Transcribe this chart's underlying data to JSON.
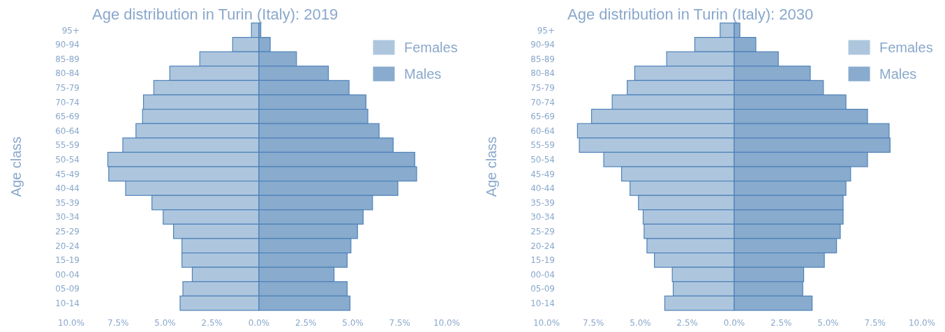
{
  "chart_data": [
    {
      "type": "bar",
      "orientation": "horizontal",
      "stacked": true,
      "title": "Age distribution in Turin (Italy): 2019",
      "ylabel": "Age class",
      "legend": "top right",
      "categories": [
        "95+",
        "90-94",
        "85-89",
        "80-84",
        "75-79",
        "70-74",
        "65-69",
        "60-64",
        "55-59",
        "50-54",
        "45-49",
        "40-44",
        "35-39",
        "30-34",
        "25-29",
        "20-24",
        "15-19",
        "00-04",
        "05-09",
        "10-14"
      ],
      "series": [
        {
          "name": "Females",
          "color": "#adc6de",
          "values": [
            -0.4,
            -1.4,
            -3.15,
            -4.75,
            -5.6,
            -6.15,
            -6.2,
            -6.55,
            -7.25,
            -8.05,
            -8.0,
            -7.1,
            -5.7,
            -5.1,
            -4.55,
            -4.1,
            -4.1,
            -3.55,
            -4.05,
            -4.2
          ]
        },
        {
          "name": "Males",
          "color": "#88abce",
          "values": [
            0.1,
            0.6,
            2.0,
            3.7,
            4.8,
            5.7,
            5.8,
            6.4,
            7.15,
            8.3,
            8.4,
            7.4,
            6.05,
            5.55,
            5.25,
            4.9,
            4.7,
            4.0,
            4.7,
            4.85
          ]
        }
      ],
      "xlim": [
        -10,
        10
      ],
      "xticks": [
        {
          "value": -10,
          "label": "10.0%"
        },
        {
          "value": -7.5,
          "label": "7.5%"
        },
        {
          "value": -5,
          "label": "5.0%"
        },
        {
          "value": -2.5,
          "label": "2.5%"
        },
        {
          "value": 0,
          "label": "0.0%"
        },
        {
          "value": 2.5,
          "label": "2.5%"
        },
        {
          "value": 5,
          "label": "5.0%"
        },
        {
          "value": 7.5,
          "label": "7.5%"
        },
        {
          "value": 10,
          "label": "10.0%"
        }
      ]
    },
    {
      "type": "bar",
      "orientation": "horizontal",
      "stacked": true,
      "title": "Age distribution in Turin (Italy): 2030",
      "ylabel": "Age class",
      "legend": "top right",
      "categories": [
        "95+",
        "90-94",
        "85-89",
        "80-84",
        "75-79",
        "70-74",
        "65-69",
        "60-64",
        "55-59",
        "50-54",
        "45-49",
        "40-44",
        "35-39",
        "30-34",
        "25-29",
        "20-24",
        "15-19",
        "00-04",
        "05-09",
        "10-14"
      ],
      "series": [
        {
          "name": "Females",
          "color": "#adc6de",
          "values": [
            -0.75,
            -2.1,
            -3.6,
            -5.3,
            -5.7,
            -6.5,
            -7.6,
            -8.35,
            -8.25,
            -6.95,
            -6.0,
            -5.55,
            -5.1,
            -4.85,
            -4.8,
            -4.65,
            -4.25,
            -3.3,
            -3.25,
            -3.7
          ]
        },
        {
          "name": "Males",
          "color": "#88abce",
          "values": [
            0.3,
            1.15,
            2.35,
            4.05,
            4.75,
            5.95,
            7.1,
            8.25,
            8.3,
            7.1,
            6.2,
            5.95,
            5.8,
            5.8,
            5.65,
            5.45,
            4.8,
            3.7,
            3.65,
            4.15
          ]
        }
      ],
      "xlim": [
        -10,
        10
      ],
      "xticks": [
        {
          "value": -10,
          "label": "10.0%"
        },
        {
          "value": -7.5,
          "label": "7.5%"
        },
        {
          "value": -5,
          "label": "5.0%"
        },
        {
          "value": -2.5,
          "label": "2.5%"
        },
        {
          "value": 0,
          "label": "0.0%"
        },
        {
          "value": 2.5,
          "label": "2.5%"
        },
        {
          "value": 5,
          "label": "5.0%"
        },
        {
          "value": 7.5,
          "label": "7.5%"
        },
        {
          "value": 10,
          "label": "10.0%"
        }
      ]
    }
  ]
}
